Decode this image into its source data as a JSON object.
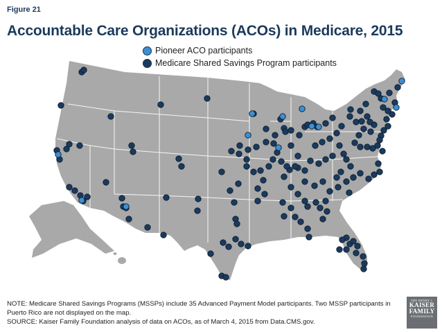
{
  "figure_label": "Figure 21",
  "title": "Accountable Care Organizations (ACOs) in Medicare, 2015",
  "legend": {
    "pioneer": {
      "label": "Pioneer ACO participants",
      "color": "#3e8fd1"
    },
    "mssp": {
      "label": "Medicare Shared Savings Program participants",
      "color": "#1b3a5c"
    }
  },
  "map_colors": {
    "land": "#a9a9a9",
    "state_border": "#ffffff",
    "dot_outline": "#0d1f33"
  },
  "notes": {
    "line1": "NOTE: Medicare Shared Savings Programs (MSSPs) include 35 Advanced Payment Model participants. Two MSSP participants in Puerto Rico are not displayed on the map.",
    "line2": "SOURCE: Kaiser Family Foundation analysis of data on ACOs, as of March 4, 2015 from Data.CMS.gov."
  },
  "logo": {
    "line1": "THE HENRY J.",
    "line2a": "KAISER",
    "line2b": "FAMILY",
    "line3": "FOUNDATION"
  }
}
